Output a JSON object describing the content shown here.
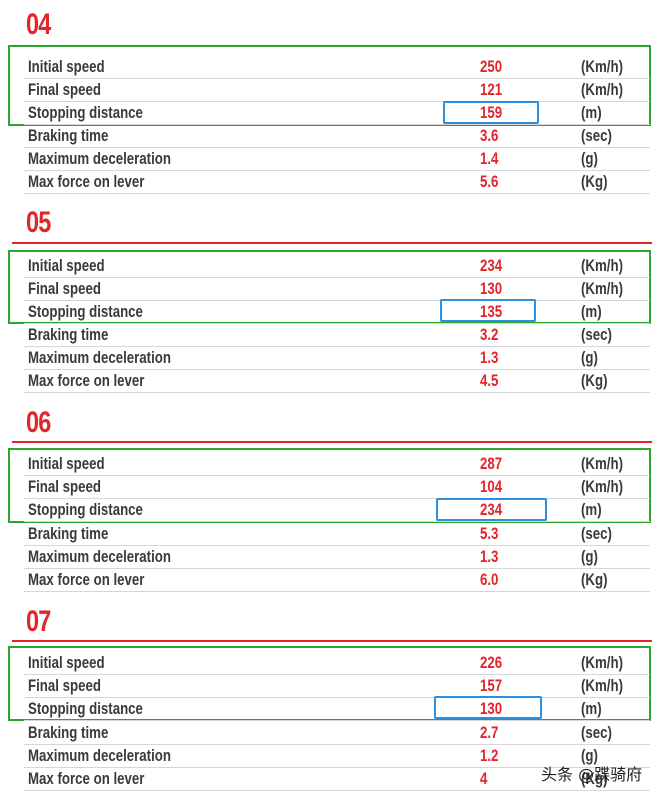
{
  "labels": {
    "initial_speed": "Initial speed",
    "final_speed": "Final speed",
    "stopping_distance": "Stopping distance",
    "braking_time": "Braking time",
    "max_deceleration": "Maximum deceleration",
    "max_force": "Max force on lever"
  },
  "units": {
    "speed": "(Km/h)",
    "distance": "(m)",
    "time": "(sec)",
    "decel": "(g)",
    "force": "(Kg)"
  },
  "sections": [
    {
      "number": "04",
      "initial_speed": "250",
      "final_speed": "121",
      "stopping_distance": "159",
      "braking_time": "3.6",
      "max_deceleration": "1.4",
      "max_force": "5.6"
    },
    {
      "number": "05",
      "initial_speed": "234",
      "final_speed": "130",
      "stopping_distance": "135",
      "braking_time": "3.2",
      "max_deceleration": "1.3",
      "max_force": "4.5"
    },
    {
      "number": "06",
      "initial_speed": "287",
      "final_speed": "104",
      "stopping_distance": "234",
      "braking_time": "5.3",
      "max_deceleration": "1.3",
      "max_force": "6.0"
    },
    {
      "number": "07",
      "initial_speed": "226",
      "final_speed": "157",
      "stopping_distance": "130",
      "braking_time": "2.7",
      "max_deceleration": "1.2",
      "max_force": "4"
    }
  ],
  "colors": {
    "accent": "#e3242b",
    "highlight_green": "#2ea52e",
    "highlight_blue": "#2b8fe0"
  },
  "watermark": "头条 @蹀骑府"
}
